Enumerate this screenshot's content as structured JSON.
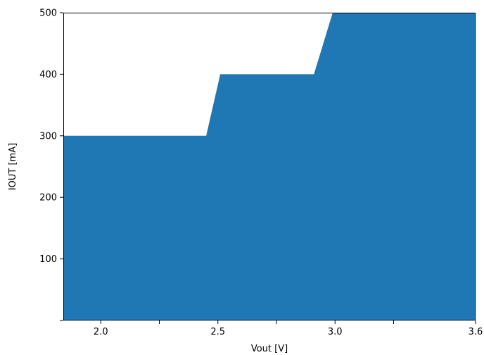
{
  "chart_data": {
    "type": "area",
    "xlabel": "Vout [V]",
    "ylabel": "IOUT [mA]",
    "xlim": [
      1.84,
      3.6
    ],
    "ylim": [
      0,
      500
    ],
    "grid": false,
    "fill_color": "#1f77b4",
    "x_ticks": [
      {
        "value": 2.0,
        "label": "2.0"
      },
      {
        "value": 2.25,
        "label": ""
      },
      {
        "value": 2.5,
        "label": "2.5"
      },
      {
        "value": 2.75,
        "label": ""
      },
      {
        "value": 3.0,
        "label": "3.0"
      },
      {
        "value": 3.25,
        "label": ""
      },
      {
        "value": 3.6,
        "label": "3.6"
      }
    ],
    "y_ticks": [
      {
        "value": 0,
        "label": ""
      },
      {
        "value": 100,
        "label": "100"
      },
      {
        "value": 200,
        "label": "200"
      },
      {
        "value": 300,
        "label": "300"
      },
      {
        "value": 400,
        "label": "400"
      },
      {
        "value": 500,
        "label": "500"
      }
    ],
    "x": [
      1.84,
      2.45,
      2.51,
      2.91,
      2.99,
      3.6
    ],
    "y": [
      300,
      300,
      400,
      400,
      500,
      500
    ]
  }
}
